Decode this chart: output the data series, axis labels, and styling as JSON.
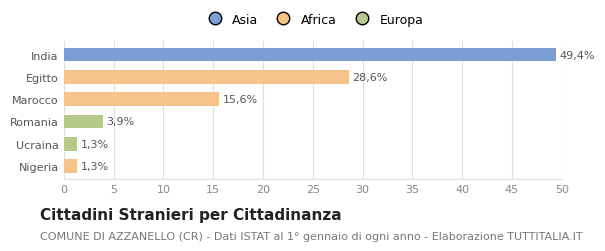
{
  "categories": [
    "Nigeria",
    "Ucraina",
    "Romania",
    "Marocco",
    "Egitto",
    "India"
  ],
  "values": [
    1.3,
    1.3,
    3.9,
    15.6,
    28.6,
    49.4
  ],
  "labels": [
    "1,3%",
    "1,3%",
    "3,9%",
    "15,6%",
    "28,6%",
    "49,4%"
  ],
  "colors": [
    "#f5c28a",
    "#b5c98a",
    "#b5c98a",
    "#f5c28a",
    "#f5c28a",
    "#7b9fd4"
  ],
  "legend": [
    {
      "label": "Asia",
      "color": "#7b9fd4"
    },
    {
      "label": "Africa",
      "color": "#f5c28a"
    },
    {
      "label": "Europa",
      "color": "#b5c98a"
    }
  ],
  "xlim": [
    0,
    50
  ],
  "xticks": [
    0,
    5,
    10,
    15,
    20,
    25,
    30,
    35,
    40,
    45,
    50
  ],
  "title": "Cittadini Stranieri per Cittadinanza",
  "subtitle": "COMUNE DI AZZANELLO (CR) - Dati ISTAT al 1° gennaio di ogni anno - Elaborazione TUTTITALIA.IT",
  "background_color": "#ffffff",
  "plot_bg_color": "#ffffff",
  "title_fontsize": 11,
  "subtitle_fontsize": 8,
  "label_fontsize": 8,
  "tick_fontsize": 8
}
